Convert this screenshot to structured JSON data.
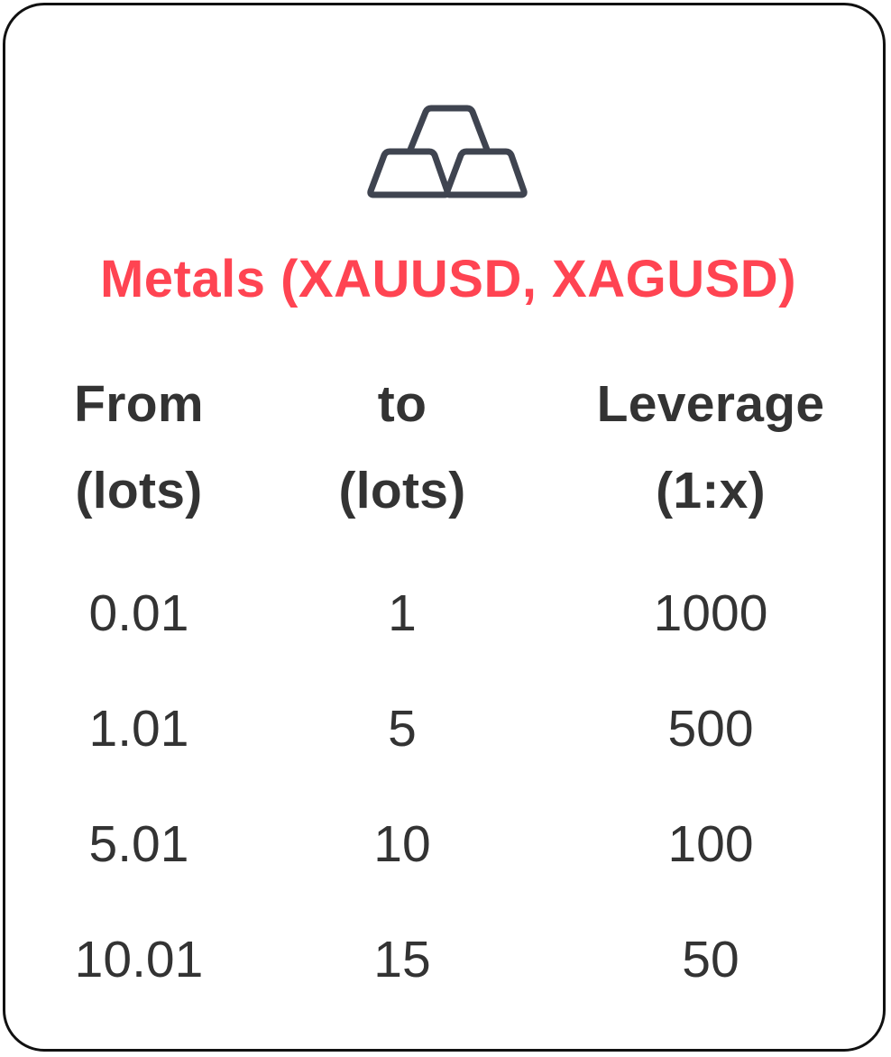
{
  "title": "Metals (XAUUSD, XAGUSD)",
  "accent_color": "#ff4452",
  "text_color": "#333333",
  "icon": "gold-bars-icon",
  "columns": {
    "from": {
      "line1": "From",
      "line2": "(lots)"
    },
    "to": {
      "line1": "to",
      "line2": "(lots)"
    },
    "leverage": {
      "line1": "Leverage",
      "line2": "(1:x)"
    }
  },
  "rows": [
    {
      "from": "0.01",
      "to": "1",
      "leverage": "1000"
    },
    {
      "from": "1.01",
      "to": "5",
      "leverage": "500"
    },
    {
      "from": "5.01",
      "to": "10",
      "leverage": "100"
    },
    {
      "from": "10.01",
      "to": "15",
      "leverage": "50"
    }
  ]
}
